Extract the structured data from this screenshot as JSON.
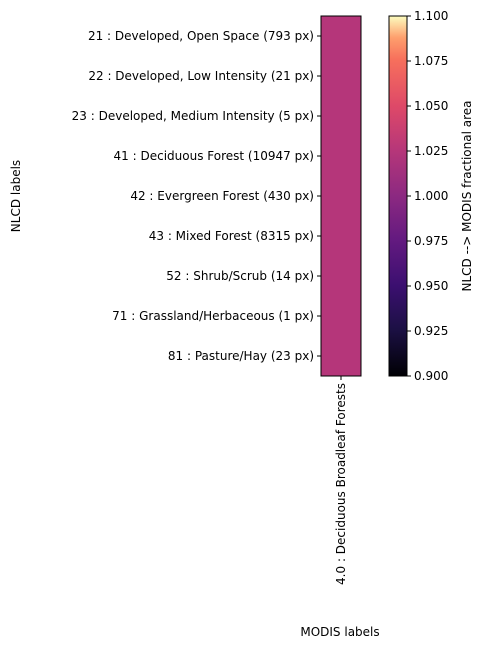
{
  "chart_data": {
    "type": "heatmap",
    "xlabel": "MODIS labels",
    "ylabel": "NLCD labels",
    "x_categories": [
      "4.0 : Deciduous Broadleaf Forests"
    ],
    "y_categories": [
      "21 : Developed, Open Space (793 px)",
      "22 : Developed, Low Intensity (21 px)",
      "23 : Developed, Medium Intensity (5 px)",
      "41 : Deciduous Forest (10947 px)",
      "42 : Evergreen Forest (430 px)",
      "43 : Mixed Forest (8315 px)",
      "52 : Shrub/Scrub (14 px)",
      "71 : Grassland/Herbaceous (1 px)",
      "81 : Pasture/Hay (23 px)"
    ],
    "values": [
      [
        1.0
      ],
      [
        1.0
      ],
      [
        1.0
      ],
      [
        1.0
      ],
      [
        1.0
      ],
      [
        1.0
      ],
      [
        1.0
      ],
      [
        1.0
      ],
      [
        1.0
      ]
    ],
    "colormap": "magma",
    "cell_color": "#b5367a",
    "colorbar": {
      "label": "NLCD --> MODIS fractional area",
      "range": [
        0.9,
        1.1
      ],
      "ticks": [
        "0.900",
        "0.925",
        "0.950",
        "0.975",
        "1.000",
        "1.025",
        "1.050",
        "1.075",
        "1.100"
      ]
    }
  }
}
